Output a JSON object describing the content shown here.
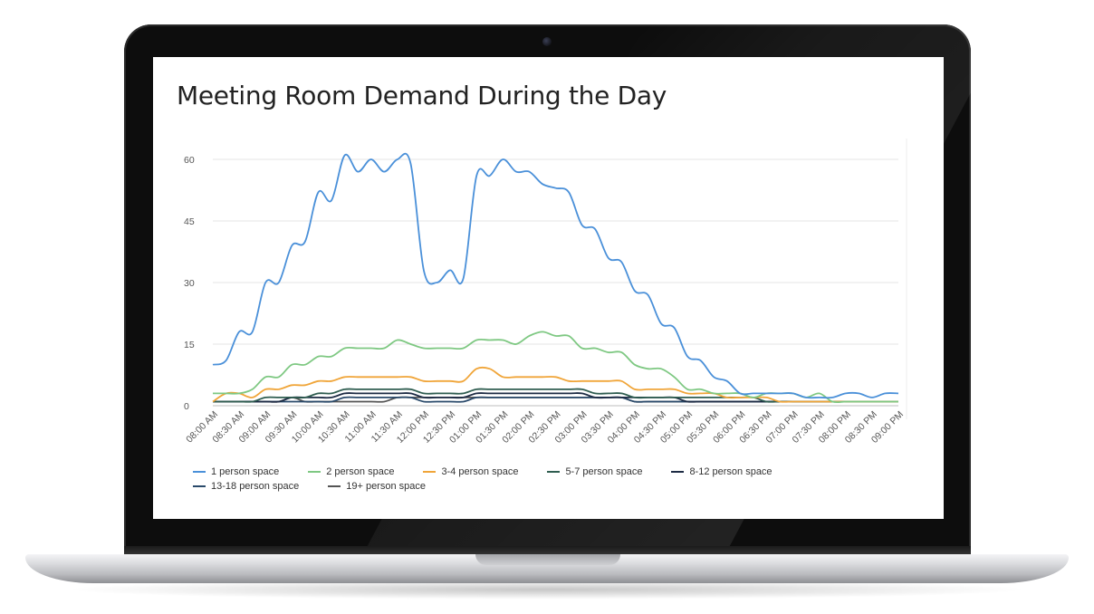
{
  "chart_data": {
    "type": "line",
    "title": "Meeting Room Demand During the Day",
    "xlabel": "",
    "ylabel": "",
    "ylim": [
      0,
      60
    ],
    "yticks": [
      0,
      15,
      30,
      45,
      60
    ],
    "grid": true,
    "legend_position": "bottom",
    "categories": [
      "08:00 AM",
      "08:15 AM",
      "08:30 AM",
      "08:45 AM",
      "09:00 AM",
      "09:15 AM",
      "09:30 AM",
      "09:45 AM",
      "10:00 AM",
      "10:15 AM",
      "10:30 AM",
      "10:45 AM",
      "11:00 AM",
      "11:15 AM",
      "11:30 AM",
      "11:45 AM",
      "12:00 PM",
      "12:15 PM",
      "12:30 PM",
      "12:45 PM",
      "01:00 PM",
      "01:15 PM",
      "01:30 PM",
      "01:45 PM",
      "02:00 PM",
      "02:15 PM",
      "02:30 PM",
      "02:45 PM",
      "03:00 PM",
      "03:15 PM",
      "03:30 PM",
      "03:45 PM",
      "04:00 PM",
      "04:15 PM",
      "04:30 PM",
      "04:45 PM",
      "05:00 PM",
      "05:15 PM",
      "05:30 PM",
      "05:45 PM",
      "06:00 PM",
      "06:15 PM",
      "06:30 PM",
      "06:45 PM",
      "07:00 PM",
      "07:15 PM",
      "07:30 PM",
      "07:45 PM",
      "08:00 PM",
      "08:15 PM",
      "08:30 PM",
      "08:45 PM",
      "09:00 PM"
    ],
    "xtick_labels": [
      "08:00 AM",
      "08:30 AM",
      "09:00 AM",
      "09:30 AM",
      "10:00 AM",
      "10:30 AM",
      "11:00 AM",
      "11:30 AM",
      "12:00 PM",
      "12:30 PM",
      "01:00 PM",
      "01:30 PM",
      "02:00 PM",
      "02:30 PM",
      "03:00 PM",
      "03:30 PM",
      "04:00 PM",
      "04:30 PM",
      "05:00 PM",
      "05:30 PM",
      "06:00 PM",
      "06:30 PM",
      "07:00 PM",
      "07:30 PM",
      "08:00 PM",
      "08:30 PM",
      "09:00 PM"
    ],
    "series": [
      {
        "name": "1 person space",
        "color": "#4a90d9",
        "values": [
          10,
          11,
          18,
          18,
          30,
          30,
          39,
          40,
          52,
          50,
          61,
          57,
          60,
          57,
          60,
          59,
          33,
          30,
          33,
          31,
          56,
          56,
          60,
          57,
          57,
          54,
          53,
          52,
          44,
          43,
          36,
          35,
          28,
          27,
          20,
          19,
          12,
          11,
          7,
          6,
          3,
          3,
          3,
          3,
          3,
          2,
          2,
          2,
          3,
          3,
          2,
          3,
          3
        ]
      },
      {
        "name": "2 person space",
        "color": "#7ec882",
        "values": [
          3,
          3,
          3,
          4,
          7,
          7,
          10,
          10,
          12,
          12,
          14,
          14,
          14,
          14,
          16,
          15,
          14,
          14,
          14,
          14,
          16,
          16,
          16,
          15,
          17,
          18,
          17,
          17,
          14,
          14,
          13,
          13,
          10,
          9,
          9,
          7,
          4,
          4,
          3,
          3,
          3,
          2,
          3,
          3,
          3,
          2,
          3,
          1,
          1,
          1,
          1,
          1,
          1
        ]
      },
      {
        "name": "3-4 person space",
        "color": "#f0a539",
        "values": [
          1,
          3,
          3,
          2,
          4,
          4,
          5,
          5,
          6,
          6,
          7,
          7,
          7,
          7,
          7,
          7,
          6,
          6,
          6,
          6,
          9,
          9,
          7,
          7,
          7,
          7,
          7,
          6,
          6,
          6,
          6,
          6,
          4,
          4,
          4,
          4,
          3,
          3,
          3,
          2,
          2,
          2,
          2,
          1,
          1,
          1,
          1,
          1,
          1,
          1,
          1,
          1,
          1
        ]
      },
      {
        "name": "5-7 person space",
        "color": "#2f5d50",
        "values": [
          1,
          1,
          1,
          1,
          2,
          2,
          2,
          2,
          3,
          3,
          4,
          4,
          4,
          4,
          4,
          4,
          3,
          3,
          3,
          3,
          4,
          4,
          4,
          4,
          4,
          4,
          4,
          4,
          4,
          3,
          3,
          3,
          2,
          2,
          2,
          2,
          2,
          2,
          2,
          2,
          2,
          2,
          1,
          1,
          1,
          1,
          1,
          1,
          1,
          1,
          1,
          1,
          1
        ]
      },
      {
        "name": "8-12 person space",
        "color": "#1d2b44",
        "values": [
          1,
          1,
          1,
          1,
          1,
          1,
          2,
          2,
          2,
          2,
          3,
          3,
          3,
          3,
          3,
          3,
          2,
          2,
          2,
          2,
          3,
          3,
          3,
          3,
          3,
          3,
          3,
          3,
          3,
          2,
          2,
          2,
          2,
          2,
          2,
          2,
          1,
          1,
          1,
          1,
          1,
          1,
          1,
          1,
          1,
          1,
          1,
          1,
          1,
          1,
          1,
          1,
          1
        ]
      },
      {
        "name": "13-18 person space",
        "color": "#2a4a6b",
        "values": [
          1,
          1,
          1,
          1,
          1,
          1,
          1,
          1,
          1,
          1,
          2,
          2,
          2,
          2,
          2,
          2,
          1,
          1,
          1,
          1,
          2,
          2,
          2,
          2,
          2,
          2,
          2,
          2,
          2,
          2,
          2,
          2,
          1,
          1,
          1,
          1,
          1,
          1,
          1,
          1,
          1,
          1,
          1,
          1,
          1,
          1,
          1,
          1,
          1,
          1,
          1,
          1,
          1
        ]
      },
      {
        "name": "19+ person space",
        "color": "#555555",
        "values": [
          1,
          1,
          1,
          1,
          1,
          1,
          2,
          1,
          1,
          1,
          1,
          1,
          1,
          1,
          2,
          2,
          2,
          2,
          2,
          2,
          2,
          2,
          2,
          2,
          2,
          2,
          2,
          2,
          2,
          2,
          2,
          2,
          1,
          1,
          1,
          1,
          1,
          1,
          1,
          1,
          1,
          1,
          1,
          1,
          1,
          1,
          1,
          1,
          1,
          1,
          1,
          1,
          1
        ]
      }
    ]
  }
}
